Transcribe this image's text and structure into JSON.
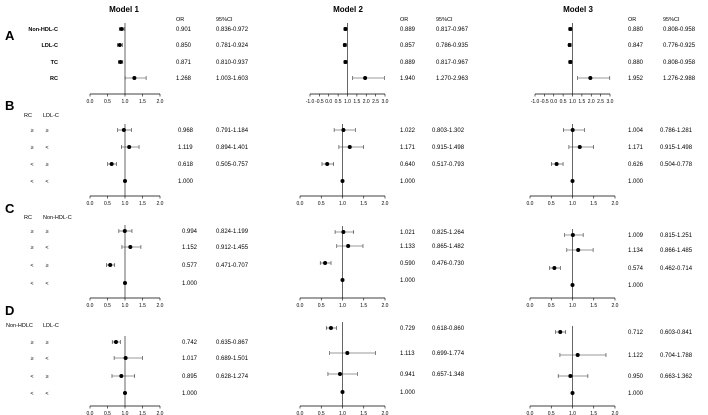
{
  "models": [
    "Model 1",
    "Model 2",
    "Model 3"
  ],
  "header": {
    "or": "OR",
    "ci": "95%CI"
  },
  "panels": [
    "A",
    "B",
    "C",
    "D"
  ],
  "group_headers": {
    "B": [
      "RC",
      "LDL-C"
    ],
    "C": [
      "RC",
      "Non-HDL-C"
    ],
    "D": [
      "Non-HDLC",
      "LDL-C"
    ]
  },
  "chart_data": {
    "type": "scatter",
    "description": "forest plots of odds ratios with 95% CI",
    "A": {
      "rows": [
        "Non-HDL-C",
        "LDL-C",
        "TC",
        "RC"
      ],
      "models": [
        {
          "or": [
            0.901,
            0.85,
            0.871,
            1.268
          ],
          "or_text": [
            "0.901",
            "0.850",
            "0.871",
            "1.268"
          ],
          "lo": [
            0.836,
            0.781,
            0.81,
            1.003
          ],
          "hi": [
            0.972,
            0.924,
            0.937,
            1.603
          ],
          "ci_text": [
            "0.836-0.972",
            "0.781-0.924",
            "0.810-0.937",
            "1.003-1.603"
          ],
          "xlim": [
            0,
            2.0
          ],
          "ticks": [
            "0.0",
            "0.5",
            "1.0",
            "1.5",
            "2.0"
          ]
        },
        {
          "or": [
            0.889,
            0.857,
            0.889,
            1.94
          ],
          "or_text": [
            "0.889",
            "0.857",
            "0.889",
            "1.940"
          ],
          "lo": [
            0.817,
            0.786,
            0.817,
            1.27
          ],
          "hi": [
            0.967,
            0.935,
            0.967,
            2.963
          ],
          "ci_text": [
            "0.817-0.967",
            "0.786-0.935",
            "0.817-0.967",
            "1.270-2.963"
          ],
          "xlim": [
            -1.0,
            3.0
          ],
          "ticks": [
            "-1.0",
            "-0.5",
            "0.0",
            "0.5",
            "1.0",
            "1.5",
            "2.0",
            "2.5",
            "3.0"
          ]
        },
        {
          "or": [
            0.88,
            0.847,
            0.88,
            1.952
          ],
          "or_text": [
            "0.880",
            "0.847",
            "0.880",
            "1.952"
          ],
          "lo": [
            0.808,
            0.776,
            0.808,
            1.276
          ],
          "hi": [
            0.958,
            0.925,
            0.958,
            2.988
          ],
          "ci_text": [
            "0.808-0.958",
            "0.776-0.925",
            "0.808-0.958",
            "1.276-2.988"
          ],
          "xlim": [
            -1.0,
            3.0
          ],
          "ticks": [
            "-1.0",
            "-0.5",
            "0.0",
            "0.5",
            "1.0",
            "1.5",
            "2.0",
            "2.5",
            "3.0"
          ]
        }
      ]
    },
    "B": {
      "rows": [
        [
          "≥",
          "≥"
        ],
        [
          "≥",
          "<"
        ],
        [
          "<",
          "≥"
        ],
        [
          "<",
          "<"
        ]
      ],
      "models": [
        {
          "or": [
            0.968,
            1.119,
            0.618,
            1.0
          ],
          "or_text": [
            "0.968",
            "1.119",
            "0.618",
            "1.000"
          ],
          "lo": [
            0.791,
            0.894,
            0.505,
            null
          ],
          "hi": [
            1.184,
            1.401,
            0.757,
            null
          ],
          "ci_text": [
            "0.791-1.184",
            "0.894-1.401",
            "0.505-0.757",
            ""
          ],
          "xlim": [
            0,
            2.0
          ],
          "ticks": [
            "0.0",
            "0.5",
            "1.0",
            "1.5",
            "2.0"
          ]
        },
        {
          "or": [
            1.022,
            1.171,
            0.64,
            1.0
          ],
          "or_text": [
            "1.022",
            "1.171",
            "0.640",
            "1.000"
          ],
          "lo": [
            0.803,
            0.915,
            0.517,
            null
          ],
          "hi": [
            1.302,
            1.498,
            0.793,
            null
          ],
          "ci_text": [
            "0.803-1.302",
            "0.915-1.498",
            "0.517-0.793",
            ""
          ],
          "xlim": [
            0,
            2.0
          ],
          "ticks": [
            "0.0",
            "0.5",
            "1.0",
            "1.5",
            "2.0"
          ]
        },
        {
          "or": [
            1.004,
            1.171,
            0.626,
            1.0
          ],
          "or_text": [
            "1.004",
            "1.171",
            "0.626",
            "1.000"
          ],
          "lo": [
            0.786,
            0.915,
            0.504,
            null
          ],
          "hi": [
            1.281,
            1.498,
            0.778,
            null
          ],
          "ci_text": [
            "0.786-1.281",
            "0.915-1.498",
            "0.504-0.778",
            ""
          ],
          "xlim": [
            0,
            2.0
          ],
          "ticks": [
            "0.0",
            "0.5",
            "1.0",
            "1.5",
            "2.0"
          ]
        }
      ]
    },
    "C": {
      "rows": [
        [
          "≥",
          "≥"
        ],
        [
          "≥",
          "<"
        ],
        [
          "<",
          "≥"
        ],
        [
          "<",
          "<"
        ]
      ],
      "models": [
        {
          "or": [
            0.994,
            1.152,
            0.577,
            1.0
          ],
          "or_text": [
            "0.994",
            "1.152",
            "0.577",
            "1.000"
          ],
          "lo": [
            0.824,
            0.912,
            0.471,
            null
          ],
          "hi": [
            1.199,
            1.455,
            0.707,
            null
          ],
          "ci_text": [
            "0.824-1.199",
            "0.912-1.455",
            "0.471-0.707",
            ""
          ],
          "xlim": [
            0,
            2.0
          ],
          "ticks": [
            "0.0",
            "0.5",
            "1.0",
            "1.5",
            "2.0"
          ]
        },
        {
          "or": [
            1.021,
            1.133,
            0.59,
            1.0
          ],
          "or_text": [
            "1.021",
            "1.133",
            "0.590",
            "1.000"
          ],
          "lo": [
            0.825,
            0.865,
            0.476,
            null
          ],
          "hi": [
            1.264,
            1.482,
            0.73,
            null
          ],
          "ci_text": [
            "0.825-1.264",
            "0.865-1.482",
            "0.476-0.730",
            ""
          ],
          "xlim": [
            0,
            2.0
          ],
          "ticks": [
            "0.0",
            "0.5",
            "1.0",
            "1.5",
            "2.0"
          ]
        },
        {
          "or": [
            1.009,
            1.134,
            0.574,
            1.0
          ],
          "or_text": [
            "1.009",
            "1.134",
            "0.574",
            "1.000"
          ],
          "lo": [
            0.815,
            0.866,
            0.462,
            null
          ],
          "hi": [
            1.251,
            1.485,
            0.714,
            null
          ],
          "ci_text": [
            "0.815-1.251",
            "0.866-1.485",
            "0.462-0.714",
            ""
          ],
          "xlim": [
            0,
            2.0
          ],
          "ticks": [
            "0.0",
            "0.5",
            "1.0",
            "1.5",
            "2.0"
          ]
        }
      ]
    },
    "D": {
      "rows": [
        [
          "≥",
          "≥"
        ],
        [
          "≥",
          "<"
        ],
        [
          "<",
          "≥"
        ],
        [
          "<",
          "<"
        ]
      ],
      "models": [
        {
          "or": [
            0.742,
            1.017,
            0.895,
            1.0
          ],
          "or_text": [
            "0.742",
            "1.017",
            "0.895",
            "1.000"
          ],
          "lo": [
            0.635,
            0.689,
            0.628,
            null
          ],
          "hi": [
            0.867,
            1.501,
            1.274,
            null
          ],
          "ci_text": [
            "0.635-0.867",
            "0.689-1.501",
            "0.628-1.274",
            ""
          ],
          "xlim": [
            0,
            2.0
          ],
          "ticks": [
            "0.0",
            "0.5",
            "1.0",
            "1.5",
            "2.0"
          ]
        },
        {
          "or": [
            0.729,
            1.113,
            0.941,
            1.0
          ],
          "or_text": [
            "0.729",
            "1.113",
            "0.941",
            "1.000"
          ],
          "lo": [
            0.618,
            0.699,
            0.657,
            null
          ],
          "hi": [
            0.86,
            1.774,
            1.348,
            null
          ],
          "ci_text": [
            "0.618-0.860",
            "0.699-1.774",
            "0.657-1.348",
            ""
          ],
          "xlim": [
            0,
            2.0
          ],
          "ticks": [
            "0.0",
            "0.5",
            "1.0",
            "1.5",
            "2.0"
          ]
        },
        {
          "or": [
            0.712,
            1.122,
            0.95,
            1.0
          ],
          "or_text": [
            "0.712",
            "1.122",
            "0.950",
            "1.000"
          ],
          "lo": [
            0.603,
            0.704,
            0.663,
            null
          ],
          "hi": [
            0.841,
            1.788,
            1.362,
            null
          ],
          "ci_text": [
            "0.603-0.841",
            "0.704-1.788",
            "0.663-1.362",
            ""
          ],
          "xlim": [
            0,
            2.0
          ],
          "ticks": [
            "0.0",
            "0.5",
            "1.0",
            "1.5",
            "2.0"
          ]
        }
      ]
    }
  }
}
